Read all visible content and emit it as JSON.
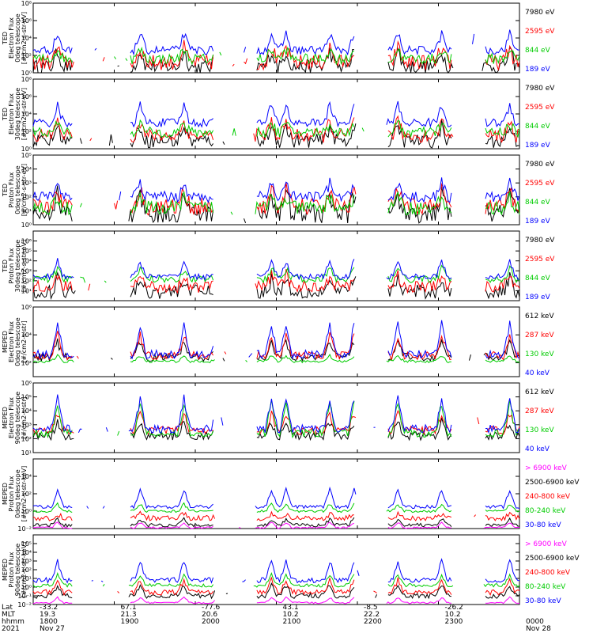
{
  "chart_data": [
    {
      "type": "line",
      "title": "TED Electron Flux 0deg telescope",
      "ylabel": [
        "TED",
        "Electron Flux",
        "0deg telescope",
        "[#/cm2-s-str-eV]"
      ],
      "ylim_log10": [
        0,
        8
      ],
      "yticks": [
        {
          "v": 0,
          "t": "10⁰"
        },
        {
          "v": 2,
          "t": "10²"
        },
        {
          "v": 4,
          "t": "10⁴"
        },
        {
          "v": 6,
          "t": "10⁶"
        },
        {
          "v": 8,
          "t": "10⁸"
        }
      ],
      "series": [
        {
          "name": "7980 eV",
          "color": "#000000",
          "base": 0.7,
          "spread": 0.8,
          "peak": 2.5
        },
        {
          "name": "2595 eV",
          "color": "#ff0000",
          "base": 1.2,
          "spread": 0.9,
          "peak": 2.9
        },
        {
          "name": "844 eV",
          "color": "#00cc00",
          "base": 1.6,
          "spread": 0.6,
          "peak": 2.7
        },
        {
          "name": "189 eV",
          "color": "#0000ff",
          "base": 2.6,
          "spread": 0.5,
          "peak": 4.5
        }
      ]
    },
    {
      "type": "line",
      "title": "TED Electron Flux 30deg telescope",
      "ylabel": [
        "TED",
        "Electron Flux",
        "30deg telescope",
        "[#/cm2-s-str-eV]"
      ],
      "ylim_log10": [
        0,
        8
      ],
      "yticks": [
        {
          "v": 0,
          "t": "10⁰"
        },
        {
          "v": 2,
          "t": "10²"
        },
        {
          "v": 4,
          "t": "10⁴"
        },
        {
          "v": 6,
          "t": "10⁶"
        },
        {
          "v": 8,
          "t": "10⁸"
        }
      ],
      "series": [
        {
          "name": "7980 eV",
          "color": "#000000",
          "base": 0.9,
          "spread": 0.8,
          "peak": 2.6
        },
        {
          "name": "2595 eV",
          "color": "#ff0000",
          "base": 1.5,
          "spread": 0.8,
          "peak": 3.1
        },
        {
          "name": "844 eV",
          "color": "#00cc00",
          "base": 1.9,
          "spread": 0.6,
          "peak": 2.9
        },
        {
          "name": "189 eV",
          "color": "#0000ff",
          "base": 3.0,
          "spread": 0.5,
          "peak": 5.0
        }
      ]
    },
    {
      "type": "line",
      "title": "TED Proton Flux 0deg telescope",
      "ylabel": [
        "TED",
        "Proton Flux",
        "0deg telescope",
        "[#/cm2-s-str-eV]"
      ],
      "ylim_log10": [
        0,
        5
      ],
      "yticks": [
        {
          "v": 0,
          "t": "10⁰"
        },
        {
          "v": 1,
          "t": "10¹"
        },
        {
          "v": 2,
          "t": "10²"
        },
        {
          "v": 3,
          "t": "10³"
        },
        {
          "v": 4,
          "t": "10⁴"
        },
        {
          "v": 5,
          "t": "10⁵"
        }
      ],
      "series": [
        {
          "name": "7980 eV",
          "color": "#000000",
          "base": 0.8,
          "spread": 0.7,
          "peak": 2.2
        },
        {
          "name": "2595 eV",
          "color": "#ff0000",
          "base": 1.3,
          "spread": 0.6,
          "peak": 2.5
        },
        {
          "name": "844 eV",
          "color": "#00cc00",
          "base": 1.2,
          "spread": 0.5,
          "peak": 2.0
        },
        {
          "name": "189 eV",
          "color": "#0000ff",
          "base": 2.0,
          "spread": 0.4,
          "peak": 3.0
        }
      ]
    },
    {
      "type": "line",
      "title": "TED Proton Flux 30deg telescope",
      "ylabel": [
        "TED",
        "Proton Flux",
        "30deg telescope",
        "[#/cm2-s-str-eV]"
      ],
      "ylim_log10": [
        0,
        7
      ],
      "yticks": [
        {
          "v": 1,
          "t": "10¹"
        },
        {
          "v": 2,
          "t": "10²"
        },
        {
          "v": 3,
          "t": "10³"
        },
        {
          "v": 4,
          "t": "10⁴"
        },
        {
          "v": 5,
          "t": "10⁵"
        },
        {
          "v": 6,
          "t": "10⁶"
        }
      ],
      "series": [
        {
          "name": "7980 eV",
          "color": "#000000",
          "base": 0.9,
          "spread": 0.7,
          "peak": 2.2
        },
        {
          "name": "2595 eV",
          "color": "#ff0000",
          "base": 1.4,
          "spread": 0.6,
          "peak": 2.6
        },
        {
          "name": "844 eV",
          "color": "#00cc00",
          "base": 2.2,
          "spread": 0.4,
          "peak": 3.2
        },
        {
          "name": "189 eV",
          "color": "#0000ff",
          "base": 2.4,
          "spread": 0.3,
          "peak": 4.0
        }
      ]
    },
    {
      "type": "line",
      "title": "MEPED Electron Flux 0deg telescope",
      "ylabel": [
        "MEPED",
        "Electron Flux",
        "0deg telescope",
        "[#/cm2-s-str]"
      ],
      "ylim_log10": [
        1,
        6
      ],
      "yticks": [
        {
          "v": 2,
          "t": "10²"
        },
        {
          "v": 4,
          "t": "10⁴"
        },
        {
          "v": 6,
          "t": "10⁶"
        }
      ],
      "series": [
        {
          "name": "612 keV",
          "color": "#000000",
          "base": 2.4,
          "spread": 0.3,
          "peak": 3.5
        },
        {
          "name": "287 keV",
          "color": "#ff0000",
          "base": 2.5,
          "spread": 0.3,
          "peak": 4.0
        },
        {
          "name": "130 keV",
          "color": "#00cc00",
          "base": 2.1,
          "spread": 0.1,
          "peak": 2.5
        },
        {
          "name": "40 keV",
          "color": "#0000ff",
          "base": 2.6,
          "spread": 0.3,
          "peak": 4.8
        }
      ]
    },
    {
      "type": "line",
      "title": "MEPED Electron Flux 90deg telescope",
      "ylabel": [
        "MEPED",
        "Electron Flux",
        "90deg telescope",
        "[#/cm2-s-str]"
      ],
      "ylim_log10": [
        1,
        6
      ],
      "yticks": [
        {
          "v": 1,
          "t": "10¹"
        },
        {
          "v": 2,
          "t": "10²"
        },
        {
          "v": 3,
          "t": "10³"
        },
        {
          "v": 4,
          "t": "10⁴"
        },
        {
          "v": 5,
          "t": "10⁵"
        },
        {
          "v": 6,
          "t": "10⁶"
        }
      ],
      "series": [
        {
          "name": "612 keV",
          "color": "#000000",
          "base": 2.2,
          "spread": 0.3,
          "peak": 3.2
        },
        {
          "name": "287 keV",
          "color": "#ff0000",
          "base": 2.6,
          "spread": 0.3,
          "peak": 3.8
        },
        {
          "name": "130 keV",
          "color": "#00cc00",
          "base": 2.4,
          "spread": 0.3,
          "peak": 4.6
        },
        {
          "name": "40 keV",
          "color": "#0000ff",
          "base": 2.7,
          "spread": 0.3,
          "peak": 4.9
        }
      ]
    },
    {
      "type": "line",
      "title": "MEPED Proton Flux 0deg telescope",
      "ylabel": [
        "MEPED",
        "Proton Flux",
        "0deg telescope",
        "[#/cm2-s-str-keV]"
      ],
      "ylim_log10": [
        -2,
        6
      ],
      "yticks": [
        {
          "v": -2,
          "t": "10⁻²"
        },
        {
          "v": 0,
          "t": "10⁰"
        },
        {
          "v": 2,
          "t": "10²"
        },
        {
          "v": 4,
          "t": "10⁴"
        }
      ],
      "series": [
        {
          "name": "> 6900 keV",
          "color": "#ff00ff",
          "base": -1.9,
          "spread": 0.1,
          "peak": -1.3
        },
        {
          "name": "2500-6900 keV",
          "color": "#000000",
          "base": -1.6,
          "spread": 0.2,
          "peak": -0.9
        },
        {
          "name": "240-800 keV",
          "color": "#ff0000",
          "base": -0.8,
          "spread": 0.3,
          "peak": -0.3
        },
        {
          "name": "80-240 keV",
          "color": "#00cc00",
          "base": 0.0,
          "spread": 0.15,
          "peak": 0.8
        },
        {
          "name": "30-80 keV",
          "color": "#0000ff",
          "base": 0.5,
          "spread": 0.2,
          "peak": 2.5
        }
      ]
    },
    {
      "type": "line",
      "title": "MEPED Proton Flux 90deg telescope",
      "ylabel": [
        "MEPED",
        "Proton Flux",
        "90deg telescope",
        "[#/cm2-s-str-keV]"
      ],
      "ylim_log10": [
        -2,
        6
      ],
      "yticks": [
        {
          "v": -2,
          "t": "10⁻²"
        },
        {
          "v": -1,
          "t": "10⁻¹"
        },
        {
          "v": 0,
          "t": "10⁰"
        },
        {
          "v": 1,
          "t": "10¹"
        },
        {
          "v": 2,
          "t": "10²"
        },
        {
          "v": 3,
          "t": "10³"
        },
        {
          "v": 4,
          "t": "10⁴"
        },
        {
          "v": 5,
          "t": "10⁵"
        }
      ],
      "series": [
        {
          "name": "> 6900 keV",
          "color": "#ff00ff",
          "base": -1.8,
          "spread": 0.1,
          "peak": -1.2
        },
        {
          "name": "2500-6900 keV",
          "color": "#000000",
          "base": -1.0,
          "spread": 0.3,
          "peak": 0.2
        },
        {
          "name": "240-800 keV",
          "color": "#ff0000",
          "base": -0.6,
          "spread": 0.3,
          "peak": 0.8
        },
        {
          "name": "80-240 keV",
          "color": "#00cc00",
          "base": 0.2,
          "spread": 0.2,
          "peak": 1.4
        },
        {
          "name": "30-80 keV",
          "color": "#0000ff",
          "base": 0.8,
          "spread": 0.3,
          "peak": 3.0
        }
      ]
    }
  ],
  "activity": {
    "passes": [
      [
        0.0,
        0.08
      ],
      [
        0.2,
        0.37
      ],
      [
        0.46,
        0.66
      ],
      [
        0.73,
        0.86
      ],
      [
        0.93,
        1.0
      ]
    ],
    "spikes": [
      0.05,
      0.22,
      0.31,
      0.38,
      0.49,
      0.52,
      0.61,
      0.66,
      0.75,
      0.84,
      0.91,
      0.98
    ]
  },
  "xaxis": {
    "row_labels": [
      "Lat",
      "MLT",
      "hhmm",
      "2021"
    ],
    "columns": [
      {
        "lat": "-33.2",
        "mlt": "19.3",
        "hhmm": "1800",
        "date": "Nov 27"
      },
      {
        "lat": "67.1",
        "mlt": "21.3",
        "hhmm": "1900",
        "date": ""
      },
      {
        "lat": "-77.6",
        "mlt": "20.6",
        "hhmm": "2000",
        "date": ""
      },
      {
        "lat": "43.1",
        "mlt": "10.2",
        "hhmm": "2100",
        "date": ""
      },
      {
        "lat": "-8.5",
        "mlt": "22.2",
        "hhmm": "2200",
        "date": ""
      },
      {
        "lat": "-26.2",
        "mlt": "10.2",
        "hhmm": "2300",
        "date": ""
      },
      {
        "lat": "",
        "mlt": "",
        "hhmm": "0000",
        "date": "Nov 28"
      }
    ]
  }
}
